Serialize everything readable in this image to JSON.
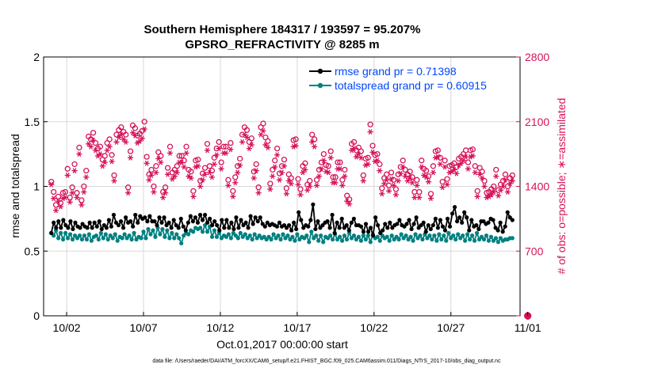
{
  "chart_data": {
    "type": "line",
    "title_line1": "Southern Hemisphere 184317 / 193597 = 95.207%",
    "title_line2": "GPSRO_REFRACTIVITY @ 8285 m",
    "xlabel": "Oct.01,2017 00:00:00 start",
    "ylabel_left": "rmse and totalspread",
    "ylabel_right": "# of obs: o=possible; ∗=assimilated",
    "footer": "data file: /Users/raeder/DAI/ATM_forcXX/CAM6_setup/f.e21.FHIST_BGC.f09_025.CAM6assim.011/Diags_NTrS_2017-10/obs_diag_output.nc",
    "xlim": [
      0.5,
      31.5
    ],
    "x_ticks": [
      2,
      7,
      12,
      17,
      22,
      27,
      32
    ],
    "x_tick_labels": [
      "10/02",
      "10/07",
      "10/12",
      "10/17",
      "10/22",
      "10/27",
      "11/01"
    ],
    "ylim_left": [
      0,
      2
    ],
    "y_left_ticks": [
      0,
      0.5,
      1,
      1.5,
      2
    ],
    "y_left_tick_labels": [
      "0",
      "0.5",
      "1",
      "1.5",
      "2"
    ],
    "ylim_right": [
      0,
      2800
    ],
    "y_right_ticks": [
      0,
      700,
      1400,
      2100,
      2800
    ],
    "y_right_tick_labels": [
      "0",
      "700",
      "1400",
      "2100",
      "2800"
    ],
    "legend_position": "top-right",
    "colors": {
      "rmse": "#000000",
      "spread": "#008080",
      "obs": "#d6135a",
      "grid": "#d9d9d9",
      "legend_text": "#0047ff"
    },
    "series": [
      {
        "name": "rmse grand pr = 0.71398",
        "values": [
          0.64,
          0.72,
          0.68,
          0.73,
          0.68,
          0.74,
          0.7,
          0.68,
          0.73,
          0.67,
          0.72,
          0.69,
          0.68,
          0.71,
          0.69,
          0.68,
          0.72,
          0.68,
          0.72,
          0.69,
          0.73,
          0.67,
          0.7,
          0.68,
          0.74,
          0.69,
          0.78,
          0.72,
          0.7,
          0.73,
          0.68,
          0.76,
          0.72,
          0.73,
          0.69,
          0.78,
          0.72,
          0.77,
          0.75,
          0.76,
          0.73,
          0.77,
          0.73,
          0.73,
          0.7,
          0.76,
          0.72,
          0.76,
          0.7,
          0.72,
          0.68,
          0.74,
          0.7,
          0.68,
          0.75,
          0.69,
          0.66,
          0.72,
          0.77,
          0.73,
          0.76,
          0.72,
          0.78,
          0.74,
          0.78,
          0.72,
          0.75,
          0.7,
          0.73,
          0.7,
          0.66,
          0.74,
          0.68,
          0.74,
          0.68,
          0.72,
          0.67,
          0.76,
          0.68,
          0.74,
          0.7,
          0.72,
          0.68,
          0.77,
          0.71,
          0.76,
          0.73,
          0.76,
          0.71,
          0.69,
          0.72,
          0.7,
          0.71,
          0.7,
          0.69,
          0.72,
          0.69,
          0.7,
          0.68,
          0.7,
          0.66,
          0.72,
          0.67,
          0.8,
          0.74,
          0.68,
          0.7,
          0.69,
          0.74,
          0.86,
          0.67,
          0.73,
          0.68,
          0.7,
          0.72,
          0.73,
          0.68,
          0.78,
          0.64,
          0.72,
          0.68,
          0.75,
          0.68,
          0.7,
          0.66,
          0.72,
          0.75,
          0.7,
          0.7,
          0.69,
          0.65,
          0.71,
          0.65,
          0.68,
          0.62,
          0.76,
          0.7,
          0.64,
          0.66,
          0.71,
          0.68,
          0.72,
          0.68,
          0.7,
          0.71,
          0.74,
          0.7,
          0.69,
          0.71,
          0.74,
          0.67,
          0.71,
          0.76,
          0.68,
          0.7,
          0.72,
          0.65,
          0.7,
          0.67,
          0.7,
          0.75,
          0.68,
          0.74,
          0.69,
          0.66,
          0.75,
          0.69,
          0.79,
          0.84,
          0.73,
          0.76,
          0.72,
          0.8,
          0.76,
          0.66,
          0.74,
          0.69,
          0.7,
          0.67,
          0.73,
          0.73,
          0.71,
          0.72,
          0.75,
          0.74,
          0.68,
          0.66,
          0.72,
          0.65,
          0.69,
          0.8,
          0.76,
          0.74
        ],
        "color": "#000000"
      },
      {
        "name": "totalspread grand pr = 0.60915",
        "values": [
          0.64,
          0.62,
          0.66,
          0.6,
          0.64,
          0.59,
          0.64,
          0.6,
          0.63,
          0.59,
          0.62,
          0.6,
          0.62,
          0.59,
          0.62,
          0.59,
          0.63,
          0.58,
          0.61,
          0.62,
          0.59,
          0.64,
          0.6,
          0.63,
          0.59,
          0.62,
          0.6,
          0.63,
          0.58,
          0.61,
          0.6,
          0.63,
          0.6,
          0.62,
          0.59,
          0.64,
          0.59,
          0.61,
          0.6,
          0.65,
          0.6,
          0.67,
          0.63,
          0.66,
          0.61,
          0.68,
          0.63,
          0.67,
          0.61,
          0.66,
          0.6,
          0.64,
          0.6,
          0.63,
          0.6,
          0.56,
          0.62,
          0.64,
          0.63,
          0.66,
          0.65,
          0.68,
          0.67,
          0.68,
          0.65,
          0.7,
          0.65,
          0.69,
          0.61,
          0.66,
          0.61,
          0.64,
          0.6,
          0.62,
          0.61,
          0.63,
          0.6,
          0.64,
          0.62,
          0.6,
          0.64,
          0.61,
          0.63,
          0.6,
          0.62,
          0.59,
          0.63,
          0.6,
          0.62,
          0.6,
          0.61,
          0.59,
          0.61,
          0.59,
          0.63,
          0.6,
          0.62,
          0.59,
          0.63,
          0.6,
          0.62,
          0.59,
          0.61,
          0.58,
          0.63,
          0.59,
          0.61,
          0.6,
          0.62,
          0.57,
          0.65,
          0.6,
          0.62,
          0.58,
          0.62,
          0.57,
          0.61,
          0.6,
          0.62,
          0.59,
          0.63,
          0.59,
          0.61,
          0.58,
          0.62,
          0.59,
          0.64,
          0.6,
          0.62,
          0.59,
          0.61,
          0.58,
          0.62,
          0.59,
          0.62,
          0.57,
          0.63,
          0.6,
          0.61,
          0.58,
          0.62,
          0.6,
          0.61,
          0.58,
          0.62,
          0.59,
          0.61,
          0.59,
          0.63,
          0.6,
          0.62,
          0.59,
          0.61,
          0.58,
          0.63,
          0.6,
          0.62,
          0.59,
          0.63,
          0.6,
          0.62,
          0.59,
          0.62,
          0.58,
          0.63,
          0.59,
          0.62,
          0.58,
          0.64,
          0.6,
          0.62,
          0.59,
          0.63,
          0.6,
          0.62,
          0.58,
          0.63,
          0.59,
          0.62,
          0.58,
          0.64,
          0.59,
          0.61,
          0.59,
          0.62,
          0.58,
          0.61,
          0.58,
          0.6,
          0.57,
          0.6,
          0.58,
          0.59,
          0.59,
          0.6,
          0.6
        ],
        "color": "#008080"
      },
      {
        "name": "possible",
        "marker": "o",
        "values": [
          1450,
          1340,
          1200,
          1290,
          1220,
          1330,
          1340,
          1590,
          1280,
          1390,
          1640,
          1330,
          1820,
          1250,
          1400,
          1570,
          1940,
          1910,
          1980,
          1870,
          1810,
          1830,
          1690,
          1730,
          1870,
          1910,
          1740,
          1520,
          1960,
          2010,
          2040,
          1990,
          1960,
          1390,
          1780,
          2060,
          2030,
          1950,
          1970,
          2000,
          2100,
          1720,
          1530,
          1580,
          1400,
          1620,
          1770,
          1730,
          1340,
          1390,
          1600,
          1830,
          1550,
          1580,
          1620,
          1730,
          1730,
          1680,
          1830,
          1580,
          1560,
          1350,
          1680,
          1690,
          1460,
          1540,
          1600,
          1860,
          1620,
          1570,
          1710,
          1810,
          1880,
          1660,
          1830,
          1830,
          1470,
          1870,
          1350,
          1500,
          1620,
          1700,
          1960,
          2040,
          2010,
          1880,
          1920,
          1560,
          1640,
          1390,
          2040,
          2080,
          1930,
          1890,
          1430,
          1580,
          1680,
          1810,
          1540,
          1620,
          1690,
          1380,
          1530,
          1490,
          1900,
          1910,
          1480,
          1370,
          1620,
          1650,
          1420,
          1460,
          1960,
          1910,
          1470,
          1580,
          1660,
          1750,
          1630,
          1620,
          1780,
          1500,
          1500,
          1660,
          1660,
          1470,
          1580,
          1300,
          1260,
          1860,
          1880,
          1790,
          1820,
          1780,
          1520,
          1700,
          1710,
          2070,
          1840,
          1740,
          1750,
          1640,
          1380,
          1490,
          1530,
          1410,
          1550,
          1470,
          1370,
          1530,
          1610,
          1680,
          1580,
          1530,
          1560,
          1500,
          1340,
          1470,
          1340,
          1680,
          1590,
          1570,
          1510,
          1320,
          1620,
          1780,
          1790,
          1710,
          1450,
          1680,
          1480,
          1620,
          1630,
          1650,
          1610,
          1700,
          1720,
          1750,
          1790,
          1660,
          1790,
          1800,
          1620,
          1350,
          1600,
          1560,
          1460,
          1330,
          1340,
          1370,
          1400,
          1580,
          1360,
          1420,
          1460,
          1530,
          1400,
          1490,
          1520
        ],
        "color": "#d6135a"
      },
      {
        "name": "assimilated",
        "marker": "*",
        "values": [
          1420,
          1270,
          1140,
          1240,
          1180,
          1270,
          1280,
          1520,
          1230,
          1330,
          1570,
          1280,
          1750,
          1200,
          1340,
          1500,
          1860,
          1830,
          1900,
          1790,
          1730,
          1750,
          1620,
          1660,
          1790,
          1830,
          1670,
          1460,
          1880,
          1930,
          1960,
          1910,
          1880,
          1330,
          1710,
          1980,
          1950,
          1870,
          1890,
          1920,
          2020,
          1650,
          1470,
          1520,
          1340,
          1550,
          1700,
          1660,
          1280,
          1330,
          1530,
          1760,
          1480,
          1510,
          1550,
          1660,
          1660,
          1610,
          1760,
          1510,
          1490,
          1290,
          1610,
          1620,
          1400,
          1470,
          1530,
          1790,
          1550,
          1500,
          1640,
          1740,
          1810,
          1590,
          1760,
          1760,
          1410,
          1800,
          1290,
          1440,
          1550,
          1630,
          1880,
          1960,
          1930,
          1810,
          1850,
          1490,
          1570,
          1330,
          1960,
          2000,
          1850,
          1820,
          1370,
          1510,
          1610,
          1740,
          1470,
          1550,
          1620,
          1320,
          1460,
          1430,
          1830,
          1840,
          1420,
          1310,
          1550,
          1580,
          1360,
          1400,
          1880,
          1830,
          1410,
          1510,
          1590,
          1680,
          1560,
          1550,
          1710,
          1440,
          1440,
          1590,
          1590,
          1410,
          1510,
          1240,
          1210,
          1790,
          1810,
          1720,
          1750,
          1710,
          1460,
          1630,
          1640,
          1990,
          1770,
          1670,
          1680,
          1570,
          1320,
          1430,
          1470,
          1350,
          1480,
          1410,
          1310,
          1460,
          1540,
          1610,
          1510,
          1460,
          1490,
          1440,
          1280,
          1410,
          1280,
          1610,
          1520,
          1500,
          1450,
          1270,
          1550,
          1710,
          1720,
          1640,
          1390,
          1610,
          1420,
          1550,
          1560,
          1580,
          1540,
          1630,
          1650,
          1680,
          1720,
          1590,
          1720,
          1730,
          1550,
          1290,
          1530,
          1490,
          1400,
          1280,
          1290,
          1310,
          1340,
          1510,
          1300,
          1360,
          1400,
          1470,
          1340,
          1430,
          1460
        ],
        "color": "#d6135a"
      }
    ],
    "final_point": {
      "x": 32,
      "possible": 0,
      "assimilated": 0
    }
  }
}
